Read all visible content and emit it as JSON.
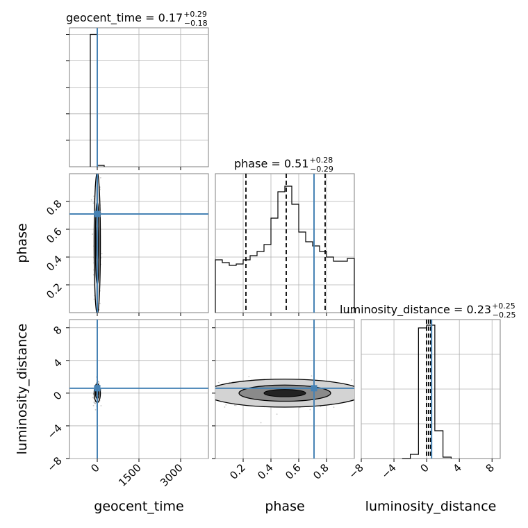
{
  "chart_data": {
    "type": "corner",
    "params": [
      "geocent_time",
      "phase",
      "luminosity_distance"
    ],
    "truths": {
      "geocent_time": 0,
      "phase": 0.71,
      "luminosity_distance": 0.6
    },
    "colors": {
      "truth": "#4682b4",
      "hist": "#000000",
      "scatter": "#b0b0b0",
      "fill": "#d3d3d3"
    },
    "grid": true,
    "panels": [
      {
        "id": "hist-geocent_time",
        "kind": "hist1d",
        "param": "geocent_time",
        "title_param": "geocent_time",
        "title_value": "0.17",
        "err_plus": "+0.29",
        "err_minus": "−0.18",
        "xlim": [
          -1000,
          4000
        ],
        "ylim": [
          0,
          1.05
        ],
        "bins": [
          [
            -250,
            0,
            1.0
          ],
          [
            0,
            250,
            0.01
          ]
        ],
        "quantiles": [
          -0.01,
          0.17,
          0.46
        ],
        "truth": 0,
        "xticks": [
          0,
          1500,
          3000
        ],
        "yticks": [
          0.2,
          0.4,
          0.6,
          0.8,
          1.0
        ]
      },
      {
        "id": "hist-phase",
        "kind": "hist1d",
        "param": "phase",
        "title_param": "phase",
        "title_value": "0.51",
        "err_plus": "+0.28",
        "err_minus": "−0.29",
        "xlim": [
          0,
          1
        ],
        "ylim": [
          0,
          1.0
        ],
        "bins": [
          [
            0,
            0.05,
            0.38
          ],
          [
            0.05,
            0.1,
            0.36
          ],
          [
            0.1,
            0.15,
            0.34
          ],
          [
            0.15,
            0.2,
            0.35
          ],
          [
            0.2,
            0.25,
            0.38
          ],
          [
            0.25,
            0.3,
            0.41
          ],
          [
            0.3,
            0.35,
            0.44
          ],
          [
            0.35,
            0.4,
            0.49
          ],
          [
            0.4,
            0.45,
            0.68
          ],
          [
            0.45,
            0.5,
            0.87
          ],
          [
            0.5,
            0.55,
            0.91
          ],
          [
            0.55,
            0.6,
            0.78
          ],
          [
            0.6,
            0.65,
            0.58
          ],
          [
            0.65,
            0.7,
            0.51
          ],
          [
            0.7,
            0.75,
            0.48
          ],
          [
            0.75,
            0.8,
            0.44
          ],
          [
            0.8,
            0.85,
            0.4
          ],
          [
            0.85,
            0.9,
            0.37
          ],
          [
            0.9,
            0.95,
            0.37
          ],
          [
            0.95,
            1.0,
            0.39
          ]
        ],
        "quantiles": [
          0.22,
          0.51,
          0.79
        ],
        "truth": 0.71,
        "xticks": [
          0.2,
          0.4,
          0.6,
          0.8
        ],
        "yticks": [
          0.2,
          0.4,
          0.6,
          0.8
        ]
      },
      {
        "id": "hist-luminosity_distance",
        "kind": "hist1d",
        "param": "luminosity_distance",
        "title_param": "luminosity_distance",
        "title_value": "0.23",
        "err_plus": "+0.25",
        "err_minus": "−0.25",
        "xlim": [
          -8,
          9
        ],
        "ylim": [
          0,
          1.0
        ],
        "bins": [
          [
            -3,
            -2,
            0.0
          ],
          [
            -2,
            -1,
            0.03
          ],
          [
            -1,
            0,
            0.94
          ],
          [
            0,
            1,
            0.96
          ],
          [
            1,
            2,
            0.2
          ],
          [
            2,
            3,
            0.01
          ]
        ],
        "quantiles": [
          -0.02,
          0.23,
          0.48
        ],
        "truth": 0.6,
        "xticks": [
          -8,
          -4,
          0,
          4,
          8
        ],
        "yticks": [
          -8,
          -4,
          0,
          4,
          8
        ]
      },
      {
        "id": "scatter-geocent_time-phase",
        "kind": "scatter2d",
        "xparam": "geocent_time",
        "yparam": "phase",
        "xlim": [
          -1000,
          4000
        ],
        "ylim": [
          0,
          1.0
        ],
        "xcenter": 0,
        "xspread": 60,
        "ycenter": 0.5,
        "yspread": 0.27,
        "truth": [
          0,
          0.71
        ],
        "xticks": [
          0,
          1500,
          3000
        ],
        "yticks": [
          0.2,
          0.4,
          0.6,
          0.8
        ]
      },
      {
        "id": "scatter-geocent_time-luminosity_distance",
        "kind": "scatter2d",
        "xparam": "geocent_time",
        "yparam": "luminosity_distance",
        "xlim": [
          -1000,
          4000
        ],
        "ylim": [
          -8,
          9
        ],
        "xcenter": 0,
        "xspread": 60,
        "ycenter": 0,
        "yspread": 0.6,
        "truth": [
          0,
          0.6
        ],
        "xticks": [
          0,
          1500,
          3000
        ],
        "yticks": [
          -8,
          -4,
          0,
          4,
          8
        ]
      },
      {
        "id": "scatter-phase-luminosity_distance",
        "kind": "scatter2d",
        "xparam": "phase",
        "yparam": "luminosity_distance",
        "xlim": [
          0,
          1.0
        ],
        "ylim": [
          -8,
          9
        ],
        "xcenter": 0.5,
        "xspread": 0.3,
        "ycenter": 0,
        "yspread": 0.9,
        "truth": [
          0.71,
          0.6
        ],
        "xticks": [
          0.2,
          0.4,
          0.6,
          0.8
        ],
        "yticks": [
          -8,
          -4,
          0,
          4,
          8
        ]
      }
    ],
    "tick_labels": {
      "geocent_time_x": [
        "0",
        "1500",
        "3000"
      ],
      "phase_x": [
        "0.2",
        "0.4",
        "0.6",
        "0.8"
      ],
      "luminosity_distance_x": [
        "−8",
        "−4",
        "0",
        "4",
        "8"
      ],
      "phase_y": [
        "0.2",
        "0.4",
        "0.6",
        "0.8"
      ],
      "luminosity_distance_y": [
        "−8",
        "−4",
        "0",
        "4",
        "8"
      ]
    },
    "axis_labels": {
      "x": [
        "geocent_time",
        "phase",
        "luminosity_distance"
      ],
      "y": [
        "phase",
        "luminosity_distance"
      ]
    }
  }
}
